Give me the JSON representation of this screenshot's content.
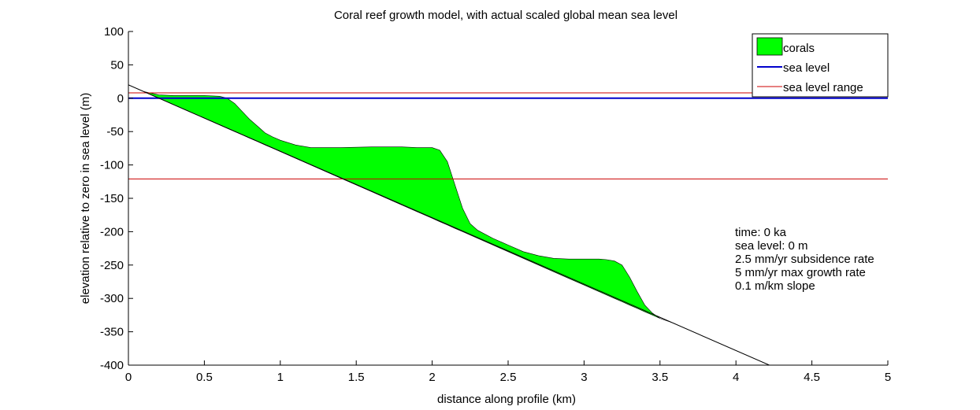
{
  "chart_data": {
    "type": "area",
    "title": "Coral reef growth model, with actual scaled global mean sea level",
    "xlabel": "distance along profile (km)",
    "ylabel": "elevation relative to zero in sea level (m)",
    "xlim": [
      0,
      5
    ],
    "ylim": [
      -400,
      100
    ],
    "xticks": [
      0,
      0.5,
      1,
      1.5,
      2,
      2.5,
      3,
      3.5,
      4,
      4.5,
      5
    ],
    "yticks": [
      100,
      50,
      0,
      -50,
      -100,
      -150,
      -200,
      -250,
      -300,
      -350,
      -400
    ],
    "xtick_labels": [
      "0",
      "0.5",
      "1",
      "1.5",
      "2",
      "2.5",
      "3",
      "3.5",
      "4",
      "4.5",
      "5"
    ],
    "ytick_labels": [
      "100",
      "50",
      "0",
      "-50",
      "-100",
      "-150",
      "-200",
      "-250",
      "-300",
      "-350",
      "-400"
    ],
    "grid": false,
    "legend_position": "top-right",
    "legend": [
      {
        "label": "corals",
        "kind": "patch",
        "color": "#00ff00"
      },
      {
        "label": "sea level",
        "kind": "line",
        "color": "#0000cc"
      },
      {
        "label": "sea level range",
        "kind": "line",
        "color": "#cc0000"
      }
    ],
    "series": [
      {
        "name": "sea level",
        "kind": "hline",
        "y": 0,
        "color": "#0000cc"
      },
      {
        "name": "sea level range",
        "kind": "hlines",
        "y": [
          8,
          -121
        ],
        "color": "#cc0000"
      },
      {
        "name": "basement",
        "kind": "line",
        "x": [
          0,
          4.22
        ],
        "y": [
          20,
          -400
        ],
        "color": "#000000"
      },
      {
        "name": "corals",
        "kind": "area",
        "color": "#00ff00",
        "x": [
          0.0,
          0.1,
          0.2,
          0.3,
          0.4,
          0.5,
          0.6,
          0.65,
          0.7,
          0.75,
          0.8,
          0.85,
          0.9,
          0.95,
          1.0,
          1.1,
          1.2,
          1.4,
          1.6,
          1.8,
          1.9,
          2.0,
          2.05,
          2.1,
          2.15,
          2.2,
          2.25,
          2.3,
          2.4,
          2.5,
          2.6,
          2.7,
          2.8,
          2.9,
          3.0,
          3.1,
          3.15,
          3.2,
          3.25,
          3.3,
          3.35,
          3.4,
          3.45,
          3.5,
          3.6
        ],
        "top": [
          20,
          10,
          5,
          4,
          4,
          4,
          3,
          0,
          -8,
          -20,
          -32,
          -42,
          -52,
          -58,
          -63,
          -70,
          -74,
          -74,
          -73,
          -73,
          -74,
          -74,
          -78,
          -95,
          -130,
          -165,
          -188,
          -198,
          -210,
          -220,
          -230,
          -236,
          -240,
          -241,
          -241,
          -241,
          -242,
          -244,
          -250,
          -268,
          -290,
          -310,
          -322,
          -330,
          -338
        ],
        "bottom": [
          20,
          10,
          0,
          -10,
          -20,
          -30,
          -40,
          -45,
          -50,
          -55,
          -60,
          -65,
          -70,
          -75,
          -80,
          -90,
          -100,
          -120,
          -140,
          -160,
          -170,
          -180,
          -185,
          -190,
          -195,
          -200,
          -205,
          -210,
          -220,
          -230,
          -240,
          -250,
          -260,
          -270,
          -280,
          -290,
          -295,
          -300,
          -305,
          -310,
          -315,
          -320,
          -325,
          -330,
          -338
        ]
      }
    ],
    "annotations": [
      "time: 0 ka",
      "sea level: 0 m",
      "2.5 mm/yr subsidence rate",
      "5 mm/yr max growth rate",
      "0.1 m/km slope"
    ]
  }
}
